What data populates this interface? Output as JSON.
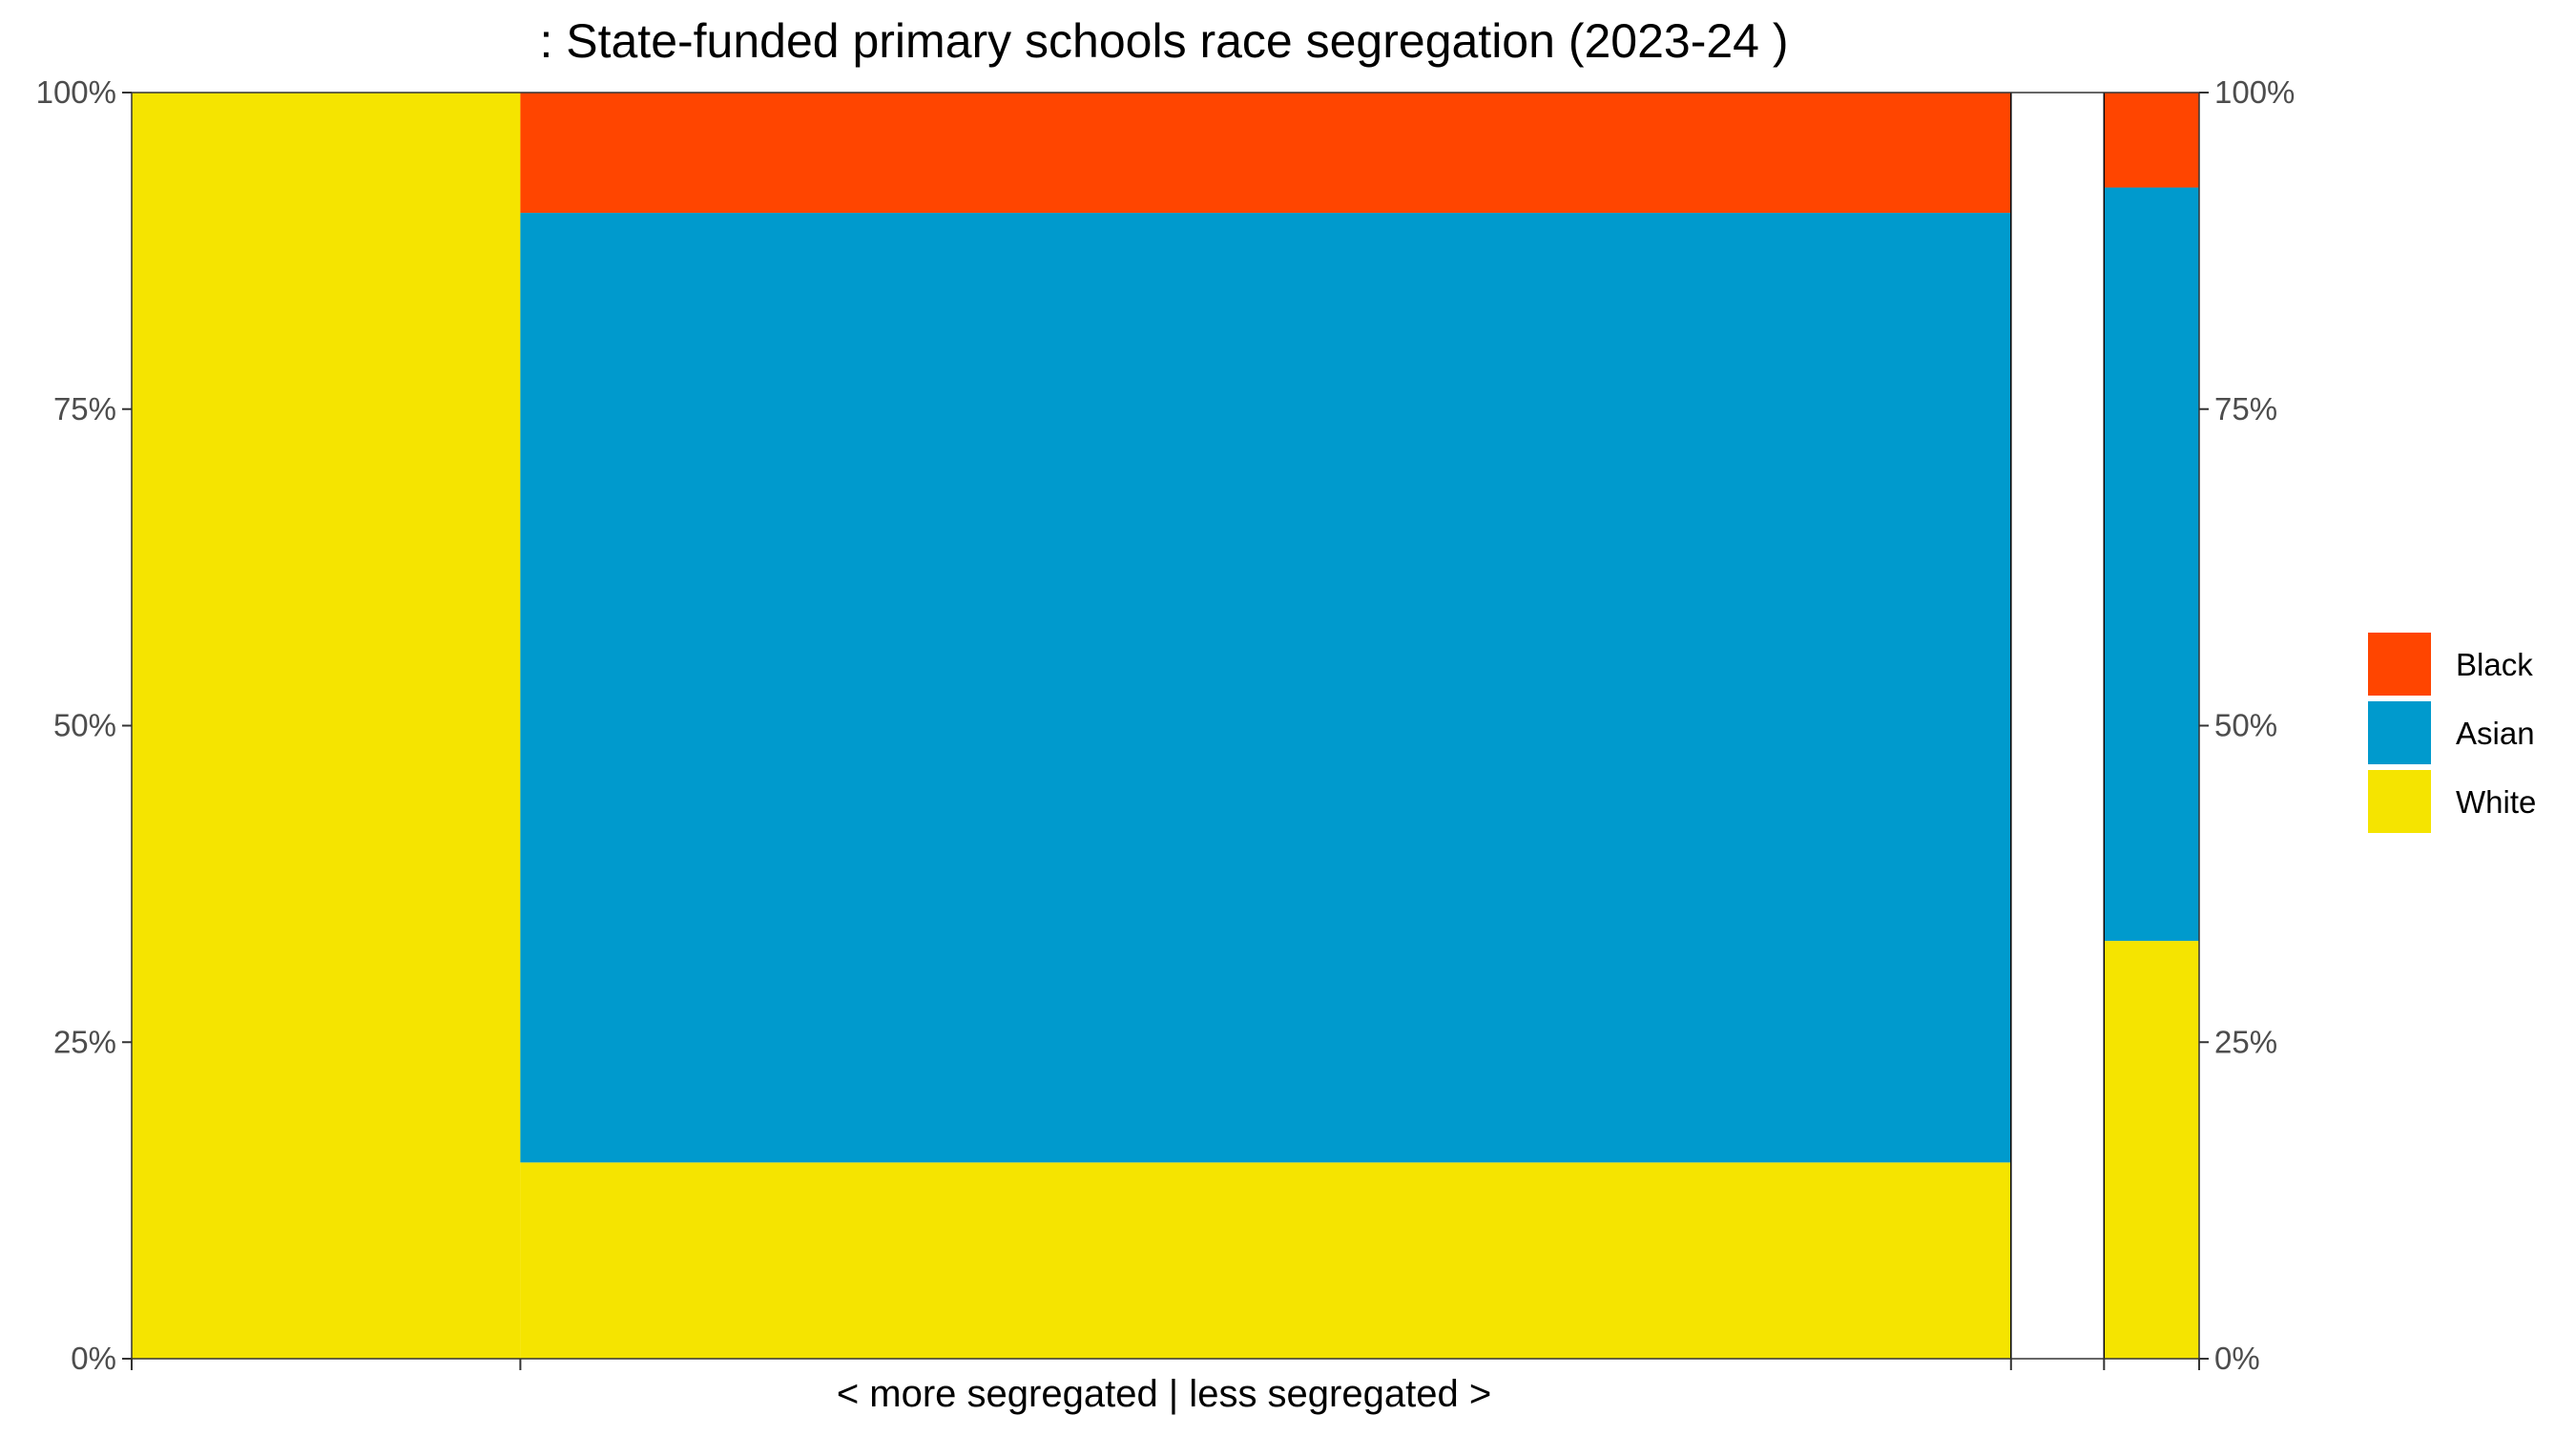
{
  "chart_data": {
    "type": "bar",
    "title": ": State-funded primary schools race segregation (2023-24 )",
    "xlabel": "< more segregated | less segregated >",
    "ylabel": "",
    "ylim": [
      0,
      1
    ],
    "y_ticks": [
      {
        "value": 0,
        "label": "0%"
      },
      {
        "value": 0.25,
        "label": "25%"
      },
      {
        "value": 0.5,
        "label": "50%"
      },
      {
        "value": 0.75,
        "label": "75%"
      },
      {
        "value": 1,
        "label": "100%"
      }
    ],
    "y_axis_secondary": true,
    "grid": false,
    "legend_position": "right",
    "legend": [
      {
        "name": "Black",
        "color": "#FF4500"
      },
      {
        "name": "Asian",
        "color": "#009ACD"
      },
      {
        "name": "White",
        "color": "#F5E400"
      }
    ],
    "columns": [
      {
        "width_share": 0.188,
        "segments": [
          {
            "series": "White",
            "value": 1.0
          }
        ]
      },
      {
        "width_share": 0.721,
        "segments": [
          {
            "series": "White",
            "value": 0.155
          },
          {
            "series": "Asian",
            "value": 0.75
          },
          {
            "series": "Black",
            "value": 0.095
          }
        ]
      },
      {
        "width_share": 0.045,
        "segments": []
      },
      {
        "width_share": 0.046,
        "segments": [
          {
            "series": "White",
            "value": 0.33
          },
          {
            "series": "Asian",
            "value": 0.595
          },
          {
            "series": "Black",
            "value": 0.075
          }
        ]
      }
    ]
  }
}
